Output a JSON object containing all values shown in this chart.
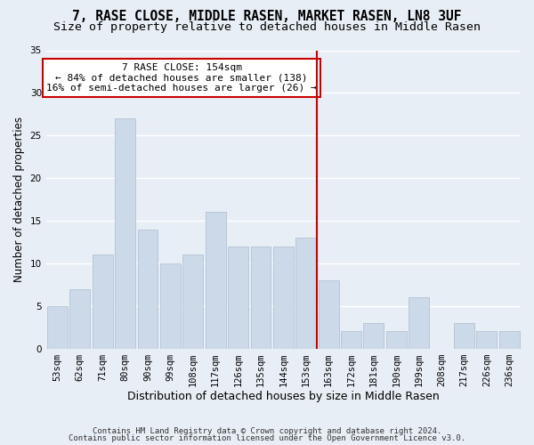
{
  "title": "7, RASE CLOSE, MIDDLE RASEN, MARKET RASEN, LN8 3UF",
  "subtitle": "Size of property relative to detached houses in Middle Rasen",
  "xlabel": "Distribution of detached houses by size in Middle Rasen",
  "ylabel": "Number of detached properties",
  "categories": [
    "53sqm",
    "62sqm",
    "71sqm",
    "80sqm",
    "90sqm",
    "99sqm",
    "108sqm",
    "117sqm",
    "126sqm",
    "135sqm",
    "144sqm",
    "153sqm",
    "163sqm",
    "172sqm",
    "181sqm",
    "190sqm",
    "199sqm",
    "208sqm",
    "217sqm",
    "226sqm",
    "236sqm"
  ],
  "values": [
    5,
    7,
    11,
    27,
    14,
    10,
    11,
    16,
    12,
    12,
    12,
    13,
    8,
    2,
    3,
    2,
    6,
    0,
    3,
    2,
    2
  ],
  "bar_color": "#ccd9e8",
  "bar_edge_color": "#aabbd0",
  "vline_color": "#cc0000",
  "annotation_text": "7 RASE CLOSE: 154sqm\n← 84% of detached houses are smaller (138)\n16% of semi-detached houses are larger (26) →",
  "annotation_box_color": "#ffffff",
  "annotation_box_edge": "#cc0000",
  "ylim": [
    0,
    35
  ],
  "yticks": [
    0,
    5,
    10,
    15,
    20,
    25,
    30,
    35
  ],
  "footer_line1": "Contains HM Land Registry data © Crown copyright and database right 2024.",
  "footer_line2": "Contains public sector information licensed under the Open Government Licence v3.0.",
  "bg_color": "#e8eef5",
  "grid_color": "#ffffff",
  "title_fontsize": 10.5,
  "subtitle_fontsize": 9.5,
  "xlabel_fontsize": 9,
  "ylabel_fontsize": 8.5,
  "tick_fontsize": 7.5,
  "annot_fontsize": 8,
  "footer_fontsize": 6.5
}
